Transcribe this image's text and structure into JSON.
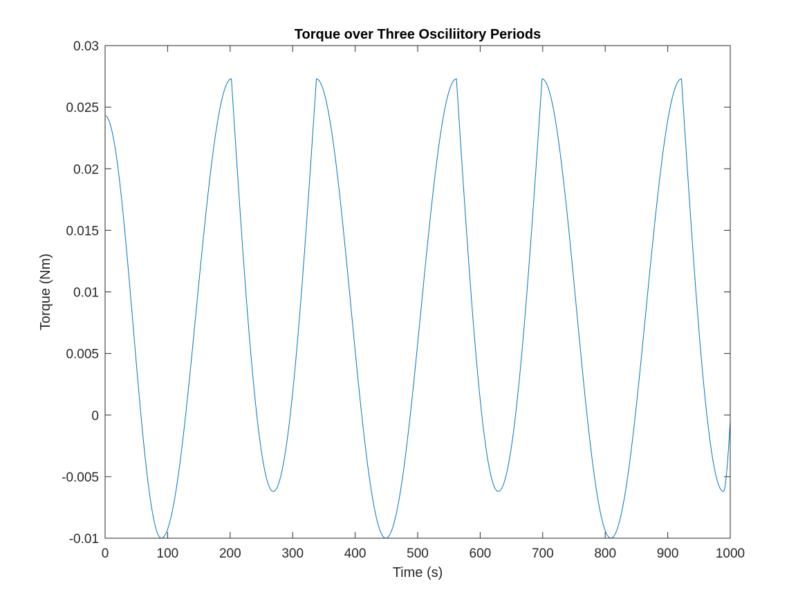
{
  "chart_data": {
    "type": "line",
    "title": "Torque over Three Osciliitory Periods",
    "xlabel": "Time (s)",
    "ylabel": "Torque (Nm)",
    "xlim": [
      0,
      1000
    ],
    "ylim": [
      -0.01,
      0.03
    ],
    "xticks": [
      0,
      100,
      200,
      300,
      400,
      500,
      600,
      700,
      800,
      900,
      1000
    ],
    "yticks": [
      -0.01,
      -0.005,
      0,
      0.005,
      0.01,
      0.015,
      0.02,
      0.025,
      0.03
    ],
    "xtick_labels": [
      "0",
      "100",
      "200",
      "300",
      "400",
      "500",
      "600",
      "700",
      "800",
      "900",
      "1000"
    ],
    "ytick_labels": [
      "-0.01",
      "-0.005",
      "0",
      "0.005",
      "0.01",
      "0.015",
      "0.02",
      "0.025",
      "0.03"
    ],
    "grid": false,
    "box": true,
    "series": [
      {
        "color": "#0072BD",
        "x": [
          0,
          90,
          202,
          269,
          338,
          449,
          562,
          629,
          699,
          809,
          922,
          989,
          1000
        ],
        "y": [
          0.0243,
          -0.01,
          0.0273,
          -0.0062,
          0.0273,
          -0.01,
          0.0273,
          -0.0062,
          0.0273,
          -0.01,
          0.0273,
          -0.0062,
          -0.0005
        ],
        "segment_shapes": [
          "cos",
          "cos",
          "cusp",
          "cusp",
          "cos",
          "cos",
          "cusp",
          "cusp",
          "cos",
          "cos",
          "cusp",
          "cusp"
        ]
      }
    ]
  }
}
